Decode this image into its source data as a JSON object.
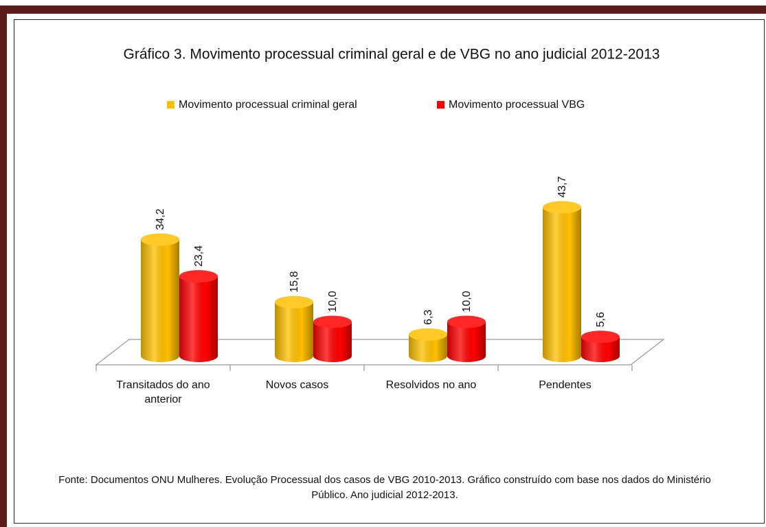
{
  "chart_data": {
    "type": "bar",
    "title": "Gráfico 3. Movimento processual criminal geral e de VBG no ano judicial 2012-2013",
    "categories": [
      "Transitados do ano anterior",
      "Novos casos",
      "Resolvidos no ano",
      "Pendentes"
    ],
    "series": [
      {
        "name": "Movimento  processual criminal geral",
        "color": "#FFC000",
        "values": [
          34.2,
          15.8,
          6.3,
          43.7
        ],
        "value_labels": [
          "34,2",
          "15,8",
          "6,3",
          "43,7"
        ]
      },
      {
        "name": "Movimento processual VBG",
        "color": "#FF0000",
        "values": [
          23.4,
          10.0,
          10.0,
          5.6
        ],
        "value_labels": [
          "23,4",
          "10,0",
          "10,0",
          "5,6"
        ]
      }
    ],
    "legend": "top",
    "source": "Fonte: Documentos ONU Mulheres. Evolução Processual dos casos de VBG 2010-2013. Gráfico construído com base nos dados do Ministério Público. Ano judicial 2012-2013."
  }
}
